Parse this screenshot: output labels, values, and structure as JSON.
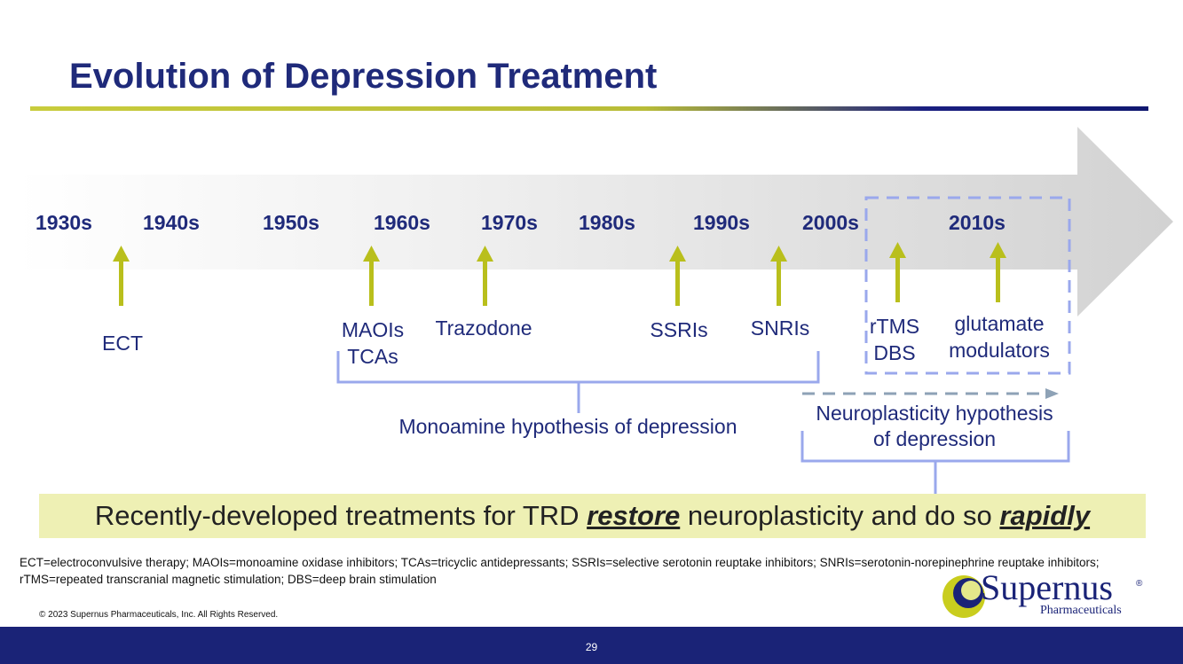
{
  "title": "Evolution of Depression Treatment",
  "timeline": {
    "years": [
      "1930s",
      "1940s",
      "1950s",
      "1960s",
      "1970s",
      "1980s",
      "1990s",
      "2000s",
      "2010s"
    ],
    "treatments": [
      {
        "label": "ECT"
      },
      {
        "label": "MAOIs"
      },
      {
        "label": "TCAs"
      },
      {
        "label": "Trazodone"
      },
      {
        "label": "SSRIs"
      },
      {
        "label": "SNRIs"
      },
      {
        "label": "rTMS"
      },
      {
        "label": "DBS"
      },
      {
        "label": "glutamate"
      },
      {
        "label": "modulators"
      }
    ]
  },
  "hypotheses": {
    "monoamine": "Monoamine hypothesis of depression",
    "neuroplasticity_line1": "Neuroplasticity hypothesis",
    "neuroplasticity_line2": "of depression"
  },
  "banner": {
    "part1": "Recently-developed treatments for TRD ",
    "emph1": "restore",
    "part2": " neuroplasticity and do so ",
    "emph2": "rapidly"
  },
  "footnote": "ECT=electroconvulsive therapy; MAOIs=monoamine oxidase inhibitors; TCAs=tricyclic antidepressants; SSRIs=selective serotonin reuptake inhibitors; SNRIs=serotonin-norepinephrine reuptake inhibitors; rTMS=repeated transcranial magnetic stimulation; DBS=deep brain stimulation",
  "copyright": "© 2023 Supernus Pharmaceuticals, Inc. All Rights Reserved.",
  "page_number": "29",
  "logo": {
    "word": "Supernus",
    "sub": "Pharmaceuticals",
    "reg": "®"
  },
  "colors": {
    "title": "#1f2a7a",
    "arrow_up": "#b9bf1c",
    "bracket": "#9aa8ec",
    "neuro_arrow": "#8ea2b6",
    "banner_bg": "#eef0b4",
    "footer_bg": "#1a2377"
  }
}
